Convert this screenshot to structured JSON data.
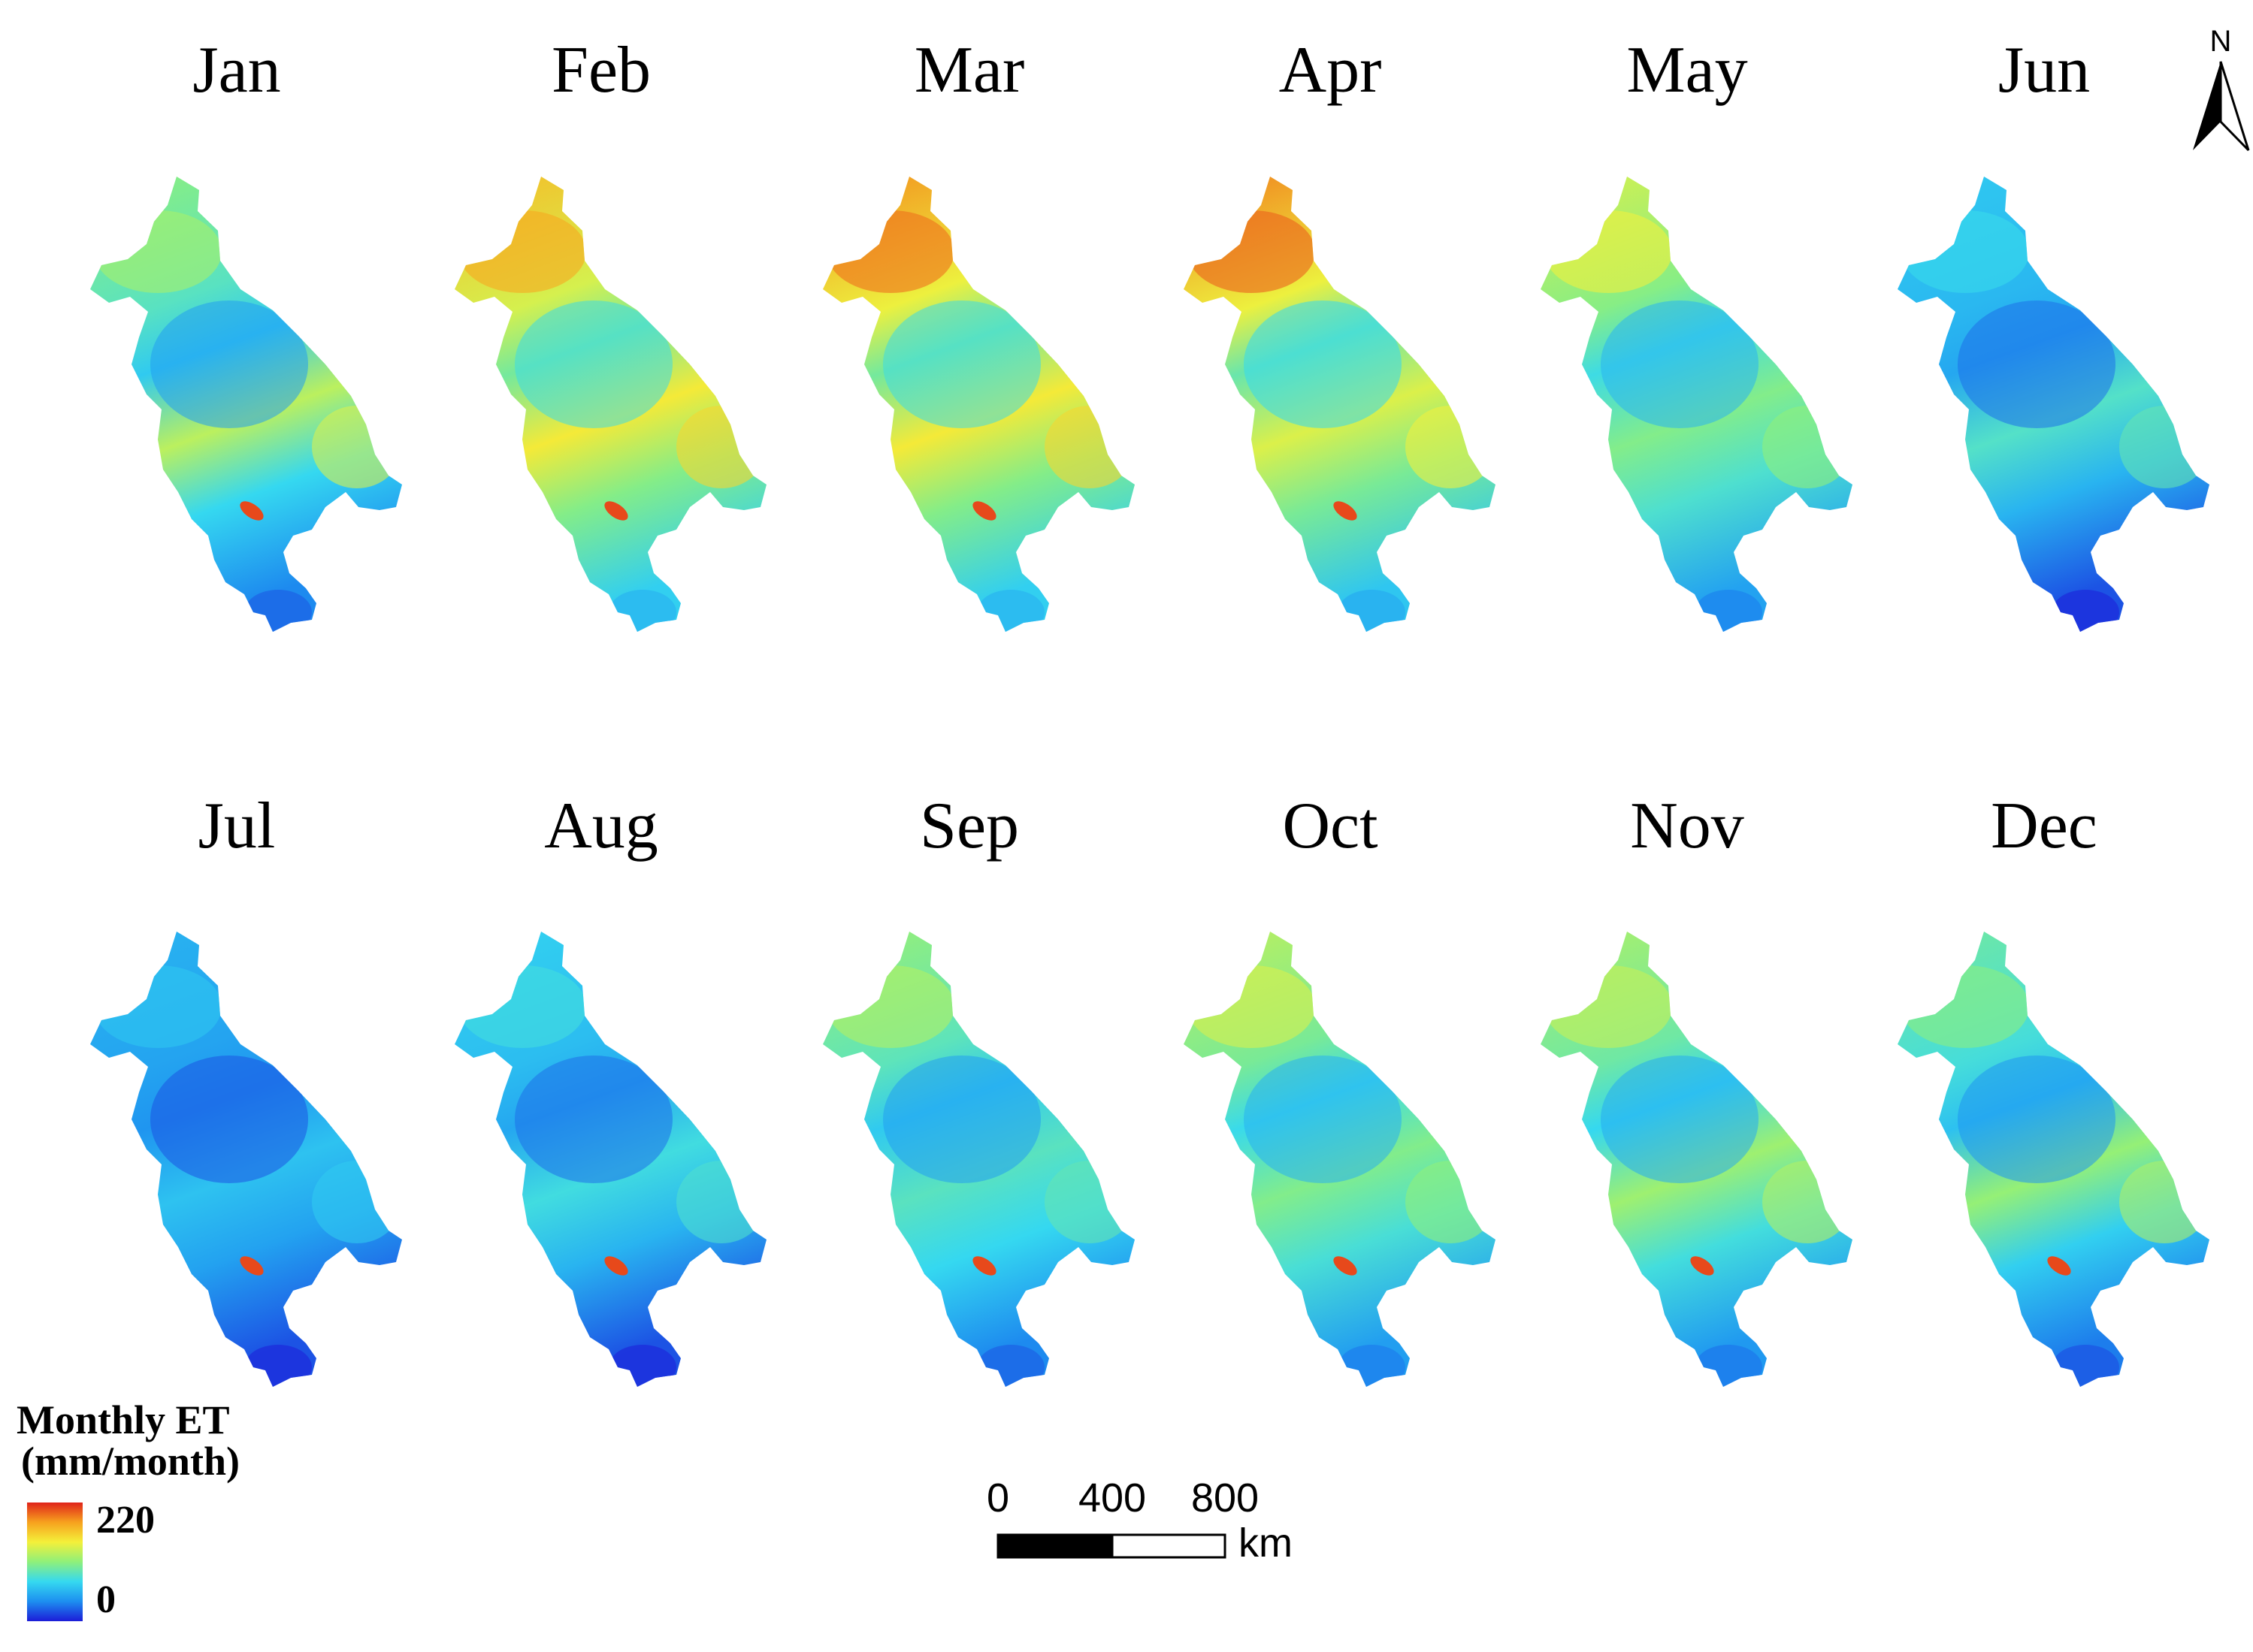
{
  "months": [
    {
      "label": "Jan",
      "level": 0.3,
      "north": 0.5,
      "east": 0.62,
      "hotspot": true
    },
    {
      "label": "Feb",
      "level": 0.45,
      "north": 0.78,
      "east": 0.72,
      "hotspot": true
    },
    {
      "label": "Mar",
      "level": 0.45,
      "north": 0.86,
      "east": 0.72,
      "hotspot": true
    },
    {
      "label": "Apr",
      "level": 0.43,
      "north": 0.88,
      "east": 0.66,
      "hotspot": true
    },
    {
      "label": "May",
      "level": 0.35,
      "north": 0.62,
      "east": 0.5,
      "hotspot": false
    },
    {
      "label": "Jun",
      "level": 0.22,
      "north": 0.3,
      "east": 0.42,
      "hotspot": false
    },
    {
      "label": "Jul",
      "level": 0.18,
      "north": 0.25,
      "east": 0.3,
      "hotspot": true
    },
    {
      "label": "Aug",
      "level": 0.22,
      "north": 0.32,
      "east": 0.38,
      "hotspot": true
    },
    {
      "label": "Sep",
      "level": 0.3,
      "north": 0.52,
      "east": 0.42,
      "hotspot": true
    },
    {
      "label": "Oct",
      "level": 0.34,
      "north": 0.58,
      "east": 0.5,
      "hotspot": true
    },
    {
      "label": "Nov",
      "level": 0.33,
      "north": 0.55,
      "east": 0.56,
      "hotspot": true
    },
    {
      "label": "Dec",
      "level": 0.28,
      "north": 0.45,
      "east": 0.55,
      "hotspot": true
    }
  ],
  "legend": {
    "title_line1": "Monthly ET",
    "title_line2": "(mm/month)",
    "max_label": "220",
    "min_label": "0",
    "gradient_colors": [
      "#1c1cd8",
      "#1d8ff0",
      "#35d9f0",
      "#8ff07a",
      "#f4f03a",
      "#f7a21e",
      "#e0231a"
    ]
  },
  "scale_bar": {
    "labels": [
      "0",
      "400",
      "800"
    ],
    "unit": "km"
  },
  "north_arrow": {
    "label": "N"
  }
}
